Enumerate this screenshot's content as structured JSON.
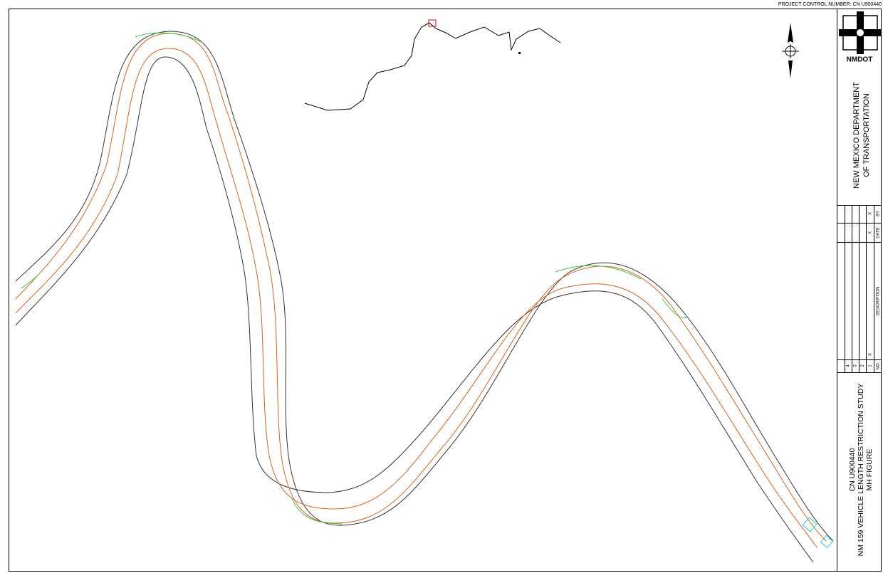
{
  "header": {
    "project_control": "PROJECT CONTROL NUMBER:  CN U900440"
  },
  "logo": {
    "text": "NMDOT"
  },
  "agency": {
    "lines": [
      "NEW MEXICO DEPARTMENT",
      "OF TRANSPORTATION"
    ]
  },
  "revisions": {
    "headers": {
      "no": "NO.",
      "description": "DESCRIPTION",
      "date": "DATE",
      "by": "BY"
    },
    "rows": [
      {
        "no": "1",
        "description": "X",
        "date": "X",
        "by": "X"
      },
      {
        "no": "2"
      },
      {
        "no": "3"
      },
      {
        "no": "4"
      }
    ]
  },
  "title_block": {
    "lines": [
      "CN U900440",
      "NM 159 VEHICLE LENGTH RESTRICTION STUDY",
      "MH FIGURE"
    ]
  }
}
